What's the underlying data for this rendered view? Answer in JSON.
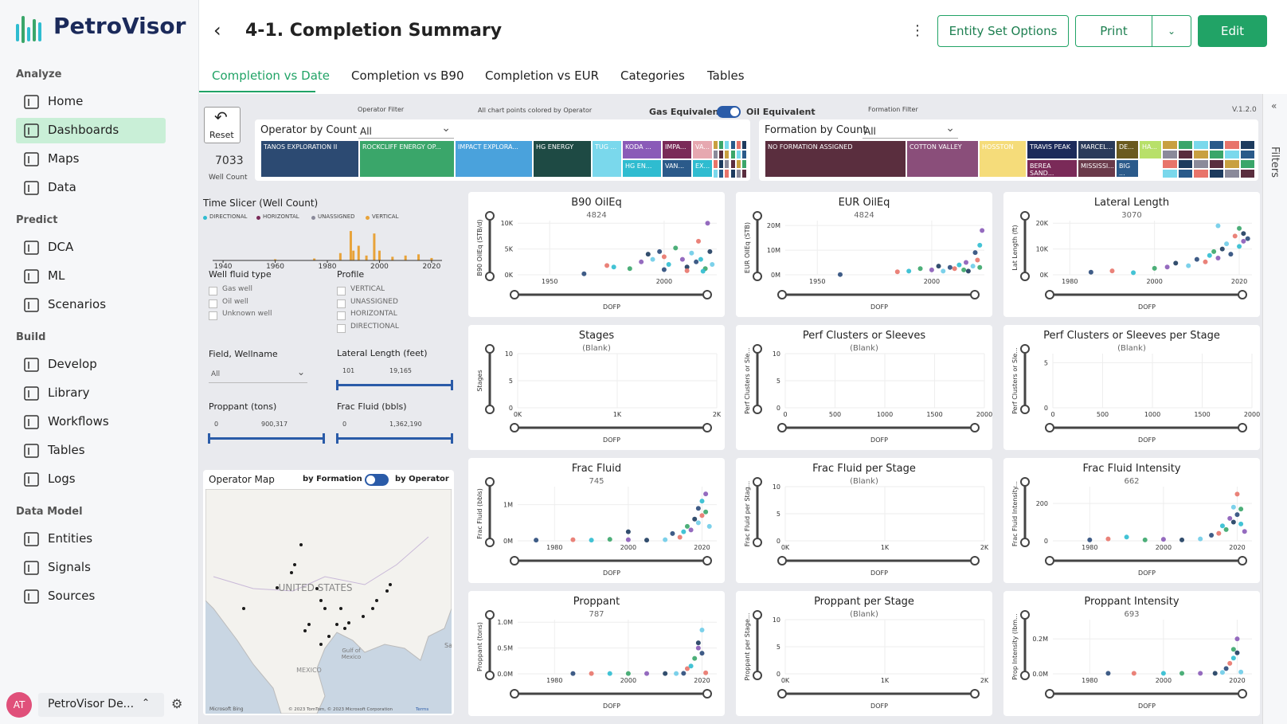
{
  "brand": "PetroVisor",
  "nav": [
    {
      "title": "Analyze",
      "items": [
        "Home",
        "Dashboards",
        "Maps",
        "Data"
      ]
    },
    {
      "title": "Predict",
      "items": [
        "DCA",
        "ML",
        "Scenarios"
      ]
    },
    {
      "title": "Build",
      "items": [
        "Develop",
        "Library",
        "Workflows",
        "Tables",
        "Logs"
      ]
    },
    {
      "title": "Data Model",
      "items": [
        "Entities",
        "Signals",
        "Sources"
      ]
    }
  ],
  "active_nav": "Dashboards",
  "user": {
    "initials": "AT",
    "name": "PetroVisor De..."
  },
  "header": {
    "title": "4-1. Completion Summary",
    "buttons": [
      "Entity Set Options",
      "Print",
      "Edit"
    ]
  },
  "tabs": [
    "Completion vs Date",
    "Completion vs B90",
    "Completion vs EUR",
    "Categories",
    "Tables"
  ],
  "active_tab": "Completion vs Date",
  "filters_pane": "Filters",
  "report": {
    "reset": "Reset",
    "well_count": "7033",
    "well_count_label": "Well Count",
    "operator_filter_label": "Operator Filter",
    "color_note": "All chart points colored by Operator",
    "toggle": {
      "left": "Gas Equivalent",
      "right": "Oil Equivalent"
    },
    "formation_filter_label": "Formation Filter",
    "version": "V.1.2.0",
    "operator_treemap": {
      "title": "Operator by Count",
      "selection": "All",
      "tiles": [
        {
          "name": "TANOS EXPLORATION II",
          "color": "#2c4a72"
        },
        {
          "name": "ROCKCLIFF ENERGY OP...",
          "color": "#3aa66a"
        },
        {
          "name": "IMPACT EXPLORA...",
          "color": "#4aa2dc"
        },
        {
          "name": "HG ENERGY",
          "color": "#1e4a44"
        },
        {
          "name": "TUG ...",
          "color": "#7ad8ec"
        },
        {
          "name": "KODA ...",
          "color": "#8a5bb8"
        },
        {
          "name": "HG EN...",
          "color": "#2fbcd0"
        },
        {
          "name": "IMPA...",
          "color": "#7a2a58"
        },
        {
          "name": "VAN...",
          "color": "#2b5a8a"
        },
        {
          "name": "VA...",
          "color": "#e6a8b0"
        },
        {
          "name": "EX...",
          "color": "#2fbcd0"
        }
      ]
    },
    "formation_treemap": {
      "title": "Formation by Count",
      "selection": "All",
      "tiles": [
        {
          "name": "NO FORMATION ASSIGNED",
          "color": "#5a2e3e"
        },
        {
          "name": "COTTON VALLEY",
          "color": "#8a4e7a"
        },
        {
          "name": "HOSSTON",
          "color": "#f5dc7a"
        },
        {
          "name": "TRAVIS PEAK",
          "color": "#1c2a5a"
        },
        {
          "name": "BEREA SAND...",
          "color": "#7a2a58"
        },
        {
          "name": "MARCEL...",
          "color": "#2a3a5a"
        },
        {
          "name": "MISSISSI...",
          "color": "#6a3a4a"
        },
        {
          "name": "DE...",
          "color": "#6b5a1e"
        },
        {
          "name": "BIG ...",
          "color": "#2a5a8a"
        },
        {
          "name": "HA...",
          "color": "#b8e06a"
        }
      ]
    },
    "time_slicer": {
      "title": "Time Slicer (Well Count)",
      "legend": [
        {
          "name": "DIRECTIONAL",
          "color": "#2fbcd0"
        },
        {
          "name": "HORIZONTAL",
          "color": "#7a2a58"
        },
        {
          "name": "UNASSIGNED",
          "color": "#8a8a9a"
        },
        {
          "name": "VERTICAL",
          "color": "#e8a33a"
        }
      ],
      "years": [
        1960,
        1975,
        1985,
        1989,
        1990,
        1992,
        1995,
        1998,
        2000,
        2005,
        2010,
        2015,
        2020
      ],
      "counts": [
        5,
        8,
        30,
        120,
        40,
        60,
        20,
        110,
        40,
        15,
        20,
        25,
        10
      ],
      "xlim": [
        1936,
        2024
      ],
      "ylim": [
        0,
        130
      ],
      "xticks": [
        1940,
        1960,
        1980,
        2000,
        2020
      ]
    },
    "well_fluid_type": {
      "title": "Well fluid type",
      "options": [
        "Gas well",
        "Oil well",
        "Unknown well"
      ]
    },
    "profile": {
      "title": "Profile",
      "options": [
        "VERTICAL",
        "UNASSIGNED",
        "HORIZONTAL",
        "DIRECTIONAL"
      ]
    },
    "field_wellname": {
      "title": "Field, Wellname",
      "selection": "All"
    },
    "lateral_length": {
      "title": "Lateral Length (feet)",
      "min": "101",
      "max": "19,165"
    },
    "proppant": {
      "title": "Proppant (tons)",
      "min": "0",
      "max": "900,317"
    },
    "frac_fluid": {
      "title": "Frac Fluid (bbls)",
      "min": "0",
      "max": "1,362,190"
    },
    "map": {
      "title": "Operator Map",
      "toggle": {
        "left": "by Formation",
        "right": "by Operator"
      },
      "country": "UNITED STATES",
      "gulf": [
        "Gulf of",
        "Mexico"
      ],
      "mexico": "MEXICO",
      "city": "San",
      "provider": "Microsoft Bing",
      "copyright": "© 2023 TomTom, © 2023 Microsoft Corporation",
      "terms": "Terms"
    }
  },
  "palette": [
    "#2a4a7a",
    "#e8746a",
    "#2fbcd0",
    "#3aa66a",
    "#8a5bb8",
    "#1d3b5e",
    "#6ecce8"
  ],
  "panels": [
    {
      "title": "B90 OilEq",
      "subtitle": "4824",
      "ylabel": "B90 OilEq (STB/d)",
      "xlabel": "DOFP",
      "xlim": [
        1936,
        2023
      ],
      "ylim": [
        0,
        10500
      ],
      "xticks": [
        1950,
        2000
      ],
      "yticks": [
        {
          "value": 0,
          "label": "0K"
        },
        {
          "value": 5000,
          "label": "5K"
        },
        {
          "value": 10000,
          "label": "10K"
        }
      ],
      "points": [
        [
          1965,
          200
        ],
        [
          1975,
          1800
        ],
        [
          1978,
          1500
        ],
        [
          1985,
          1200
        ],
        [
          1990,
          2500
        ],
        [
          1993,
          4000
        ],
        [
          1995,
          3000
        ],
        [
          1998,
          4500
        ],
        [
          2000,
          3500
        ],
        [
          2002,
          2000
        ],
        [
          2005,
          5200
        ],
        [
          2008,
          3000
        ],
        [
          2010,
          1500
        ],
        [
          2012,
          4200
        ],
        [
          2014,
          2500
        ],
        [
          2015,
          6500
        ],
        [
          2016,
          3000
        ],
        [
          2018,
          1200
        ],
        [
          2019,
          10000
        ],
        [
          2020,
          4500
        ],
        [
          2021,
          2000
        ],
        [
          2000,
          1000
        ],
        [
          2010,
          800
        ],
        [
          2017,
          700
        ]
      ]
    },
    {
      "title": "EUR OilEq",
      "subtitle": "4824",
      "ylabel": "EUR OilEq (STB)",
      "xlabel": "DOFP",
      "xlim": [
        1936,
        2023
      ],
      "ylim": [
        0,
        22000000
      ],
      "xticks": [
        1950,
        2000
      ],
      "yticks": [
        {
          "value": 0,
          "label": "0M"
        },
        {
          "value": 10000000,
          "label": "10M"
        },
        {
          "value": 20000000,
          "label": "20M"
        }
      ],
      "points": [
        [
          1960,
          100000
        ],
        [
          1985,
          1200000
        ],
        [
          1990,
          1500000
        ],
        [
          1995,
          2500000
        ],
        [
          2000,
          2000000
        ],
        [
          2003,
          3500000
        ],
        [
          2005,
          1500000
        ],
        [
          2008,
          3000000
        ],
        [
          2010,
          2500000
        ],
        [
          2012,
          4000000
        ],
        [
          2014,
          2000000
        ],
        [
          2015,
          5000000
        ],
        [
          2016,
          1500000
        ],
        [
          2018,
          3500000
        ],
        [
          2019,
          9000000
        ],
        [
          2020,
          6000000
        ],
        [
          2021,
          12000000
        ],
        [
          2021,
          3000000
        ],
        [
          2022,
          18000000
        ]
      ]
    },
    {
      "title": "Lateral Length",
      "subtitle": "3070",
      "ylabel": "Lat Length (ft)",
      "xlabel": "DOFP",
      "xlim": [
        1976,
        2023
      ],
      "ylim": [
        0,
        21000
      ],
      "xticks": [
        1980,
        2000,
        2020
      ],
      "yticks": [
        {
          "value": 0,
          "label": "0K"
        },
        {
          "value": 10000,
          "label": "10K"
        },
        {
          "value": 20000,
          "label": "20K"
        }
      ],
      "points": [
        [
          1985,
          1000
        ],
        [
          1990,
          1500
        ],
        [
          1995,
          800
        ],
        [
          2000,
          2500
        ],
        [
          2003,
          3000
        ],
        [
          2005,
          4500
        ],
        [
          2008,
          3500
        ],
        [
          2010,
          6000
        ],
        [
          2012,
          5000
        ],
        [
          2013,
          7500
        ],
        [
          2014,
          9000
        ],
        [
          2015,
          6500
        ],
        [
          2016,
          10000
        ],
        [
          2017,
          12000
        ],
        [
          2018,
          8000
        ],
        [
          2019,
          15000
        ],
        [
          2020,
          11000
        ],
        [
          2020,
          18000
        ],
        [
          2021,
          13000
        ],
        [
          2021,
          16000
        ],
        [
          2015,
          19000
        ],
        [
          2022,
          14000
        ]
      ]
    },
    {
      "title": "Stages",
      "subtitle": "(Blank)",
      "ylabel": "Stages",
      "xlabel": "DOFP",
      "xlim": [
        0,
        2000
      ],
      "ylim": [
        0,
        10
      ],
      "xticks": [
        {
          "value": 0,
          "label": "0K"
        },
        {
          "value": 1000,
          "label": "1K"
        },
        {
          "value": 2000,
          "label": "2K"
        }
      ],
      "yticks": [
        0,
        5,
        10
      ],
      "points": []
    },
    {
      "title": "Perf Clusters or Sleeves",
      "subtitle": "(Blank)",
      "ylabel": "Perf Clusters or Sle...",
      "xlabel": "DOFP",
      "xlim": [
        0,
        2000
      ],
      "ylim": [
        0,
        10
      ],
      "xticks": [
        0,
        500,
        1000,
        1500,
        2000
      ],
      "yticks": [
        0,
        5,
        10
      ],
      "points": []
    },
    {
      "title": "Perf Clusters or Sleeves per Stage",
      "subtitle": "(Blank)",
      "ylabel": "Perf Clusters or Sle...",
      "xlabel": "DOFP",
      "xlim": [
        0,
        2000
      ],
      "ylim": [
        0,
        6
      ],
      "xticks": [
        0,
        500,
        1000,
        1500,
        2000
      ],
      "yticks": [
        0,
        5
      ],
      "points": []
    },
    {
      "title": "Frac Fluid",
      "subtitle": "745",
      "ylabel": "Frac Fluid (bbls)",
      "xlabel": "DOFP",
      "xlim": [
        1970,
        2024
      ],
      "ylim": [
        0,
        1500000
      ],
      "xticks": [
        1980,
        2000,
        2020
      ],
      "yticks": [
        {
          "value": 0,
          "label": "0M"
        },
        {
          "value": 1000000,
          "label": "1M"
        }
      ],
      "points": [
        [
          1975,
          20000
        ],
        [
          1985,
          30000
        ],
        [
          1990,
          20000
        ],
        [
          1995,
          40000
        ],
        [
          2000,
          30000
        ],
        [
          2005,
          20000
        ],
        [
          2010,
          30000
        ],
        [
          2012,
          200000
        ],
        [
          2014,
          100000
        ],
        [
          2015,
          250000
        ],
        [
          2016,
          400000
        ],
        [
          2017,
          300000
        ],
        [
          2018,
          600000
        ],
        [
          2019,
          500000
        ],
        [
          2019,
          900000
        ],
        [
          2020,
          700000
        ],
        [
          2020,
          1100000
        ],
        [
          2021,
          800000
        ],
        [
          2021,
          1300000
        ],
        [
          2000,
          250000
        ],
        [
          2022,
          400000
        ]
      ]
    },
    {
      "title": "Frac Fluid per Stage",
      "subtitle": "(Blank)",
      "ylabel": "Frac Fluid per Stag...",
      "xlabel": "DOFP",
      "xlim": [
        0,
        2000
      ],
      "ylim": [
        0,
        10
      ],
      "xticks": [
        {
          "value": 0,
          "label": "0K"
        },
        {
          "value": 1000,
          "label": "1K"
        },
        {
          "value": 2000,
          "label": "2K"
        }
      ],
      "yticks": [
        0,
        5,
        10
      ],
      "points": []
    },
    {
      "title": "Frac Fluid Intensity",
      "subtitle": "662",
      "ylabel": "Frac Fluid Intensity...",
      "xlabel": "DOFP",
      "xlim": [
        1970,
        2024
      ],
      "ylim": [
        0,
        290
      ],
      "xticks": [
        1980,
        2000,
        2020
      ],
      "yticks": [
        0,
        200
      ],
      "points": [
        [
          1980,
          5
        ],
        [
          1985,
          10
        ],
        [
          1990,
          20
        ],
        [
          1995,
          5
        ],
        [
          2000,
          8
        ],
        [
          2005,
          5
        ],
        [
          2010,
          10
        ],
        [
          2013,
          30
        ],
        [
          2015,
          40
        ],
        [
          2016,
          80
        ],
        [
          2017,
          60
        ],
        [
          2018,
          120
        ],
        [
          2019,
          100
        ],
        [
          2019,
          180
        ],
        [
          2020,
          140
        ],
        [
          2020,
          250
        ],
        [
          2021,
          90
        ],
        [
          2021,
          170
        ],
        [
          2022,
          50
        ]
      ]
    },
    {
      "title": "Proppant",
      "subtitle": "787",
      "ylabel": "Proppant (tons)",
      "xlabel": "DOFP",
      "xlim": [
        1970,
        2024
      ],
      "ylim": [
        0,
        1050000
      ],
      "xticks": [
        1980,
        2000,
        2020
      ],
      "yticks": [
        {
          "value": 0,
          "label": "0.0M"
        },
        {
          "value": 500000,
          "label": "0.5M"
        },
        {
          "value": 1000000,
          "label": "1.0M"
        }
      ],
      "points": [
        [
          1985,
          5000
        ],
        [
          1990,
          5000
        ],
        [
          1995,
          5000
        ],
        [
          2000,
          5000
        ],
        [
          2005,
          5000
        ],
        [
          2010,
          5000
        ],
        [
          2013,
          5000
        ],
        [
          2015,
          10000
        ],
        [
          2016,
          100000
        ],
        [
          2017,
          150000
        ],
        [
          2018,
          300000
        ],
        [
          2019,
          500000
        ],
        [
          2019,
          600000
        ],
        [
          2020,
          850000
        ],
        [
          2020,
          400000
        ],
        [
          2021,
          20000
        ]
      ]
    },
    {
      "title": "Proppant per Stage",
      "subtitle": "(Blank)",
      "ylabel": "Proppant per Stage...",
      "xlabel": "DOFP",
      "xlim": [
        0,
        2000
      ],
      "ylim": [
        0,
        10
      ],
      "xticks": [
        {
          "value": 0,
          "label": "0K"
        },
        {
          "value": 1000,
          "label": "1K"
        },
        {
          "value": 2000,
          "label": "2K"
        }
      ],
      "yticks": [
        0,
        5,
        10
      ],
      "points": []
    },
    {
      "title": "Proppant Intensity",
      "subtitle": "693",
      "ylabel": "Prop Intensity (lbm...",
      "xlabel": "DOFP",
      "xlim": [
        1970,
        2024
      ],
      "ylim": [
        0,
        310000
      ],
      "xticks": [
        1980,
        2000,
        2020
      ],
      "yticks": [
        {
          "value": 0,
          "label": "0.0M"
        },
        {
          "value": 200000,
          "label": "0.2M"
        }
      ],
      "points": [
        [
          1985,
          3000
        ],
        [
          1992,
          3000
        ],
        [
          2000,
          3000
        ],
        [
          2005,
          3000
        ],
        [
          2010,
          3000
        ],
        [
          2014,
          3000
        ],
        [
          2016,
          8000
        ],
        [
          2017,
          30000
        ],
        [
          2018,
          60000
        ],
        [
          2019,
          90000
        ],
        [
          2019,
          140000
        ],
        [
          2020,
          200000
        ],
        [
          2020,
          120000
        ],
        [
          2021,
          10000
        ]
      ]
    }
  ]
}
